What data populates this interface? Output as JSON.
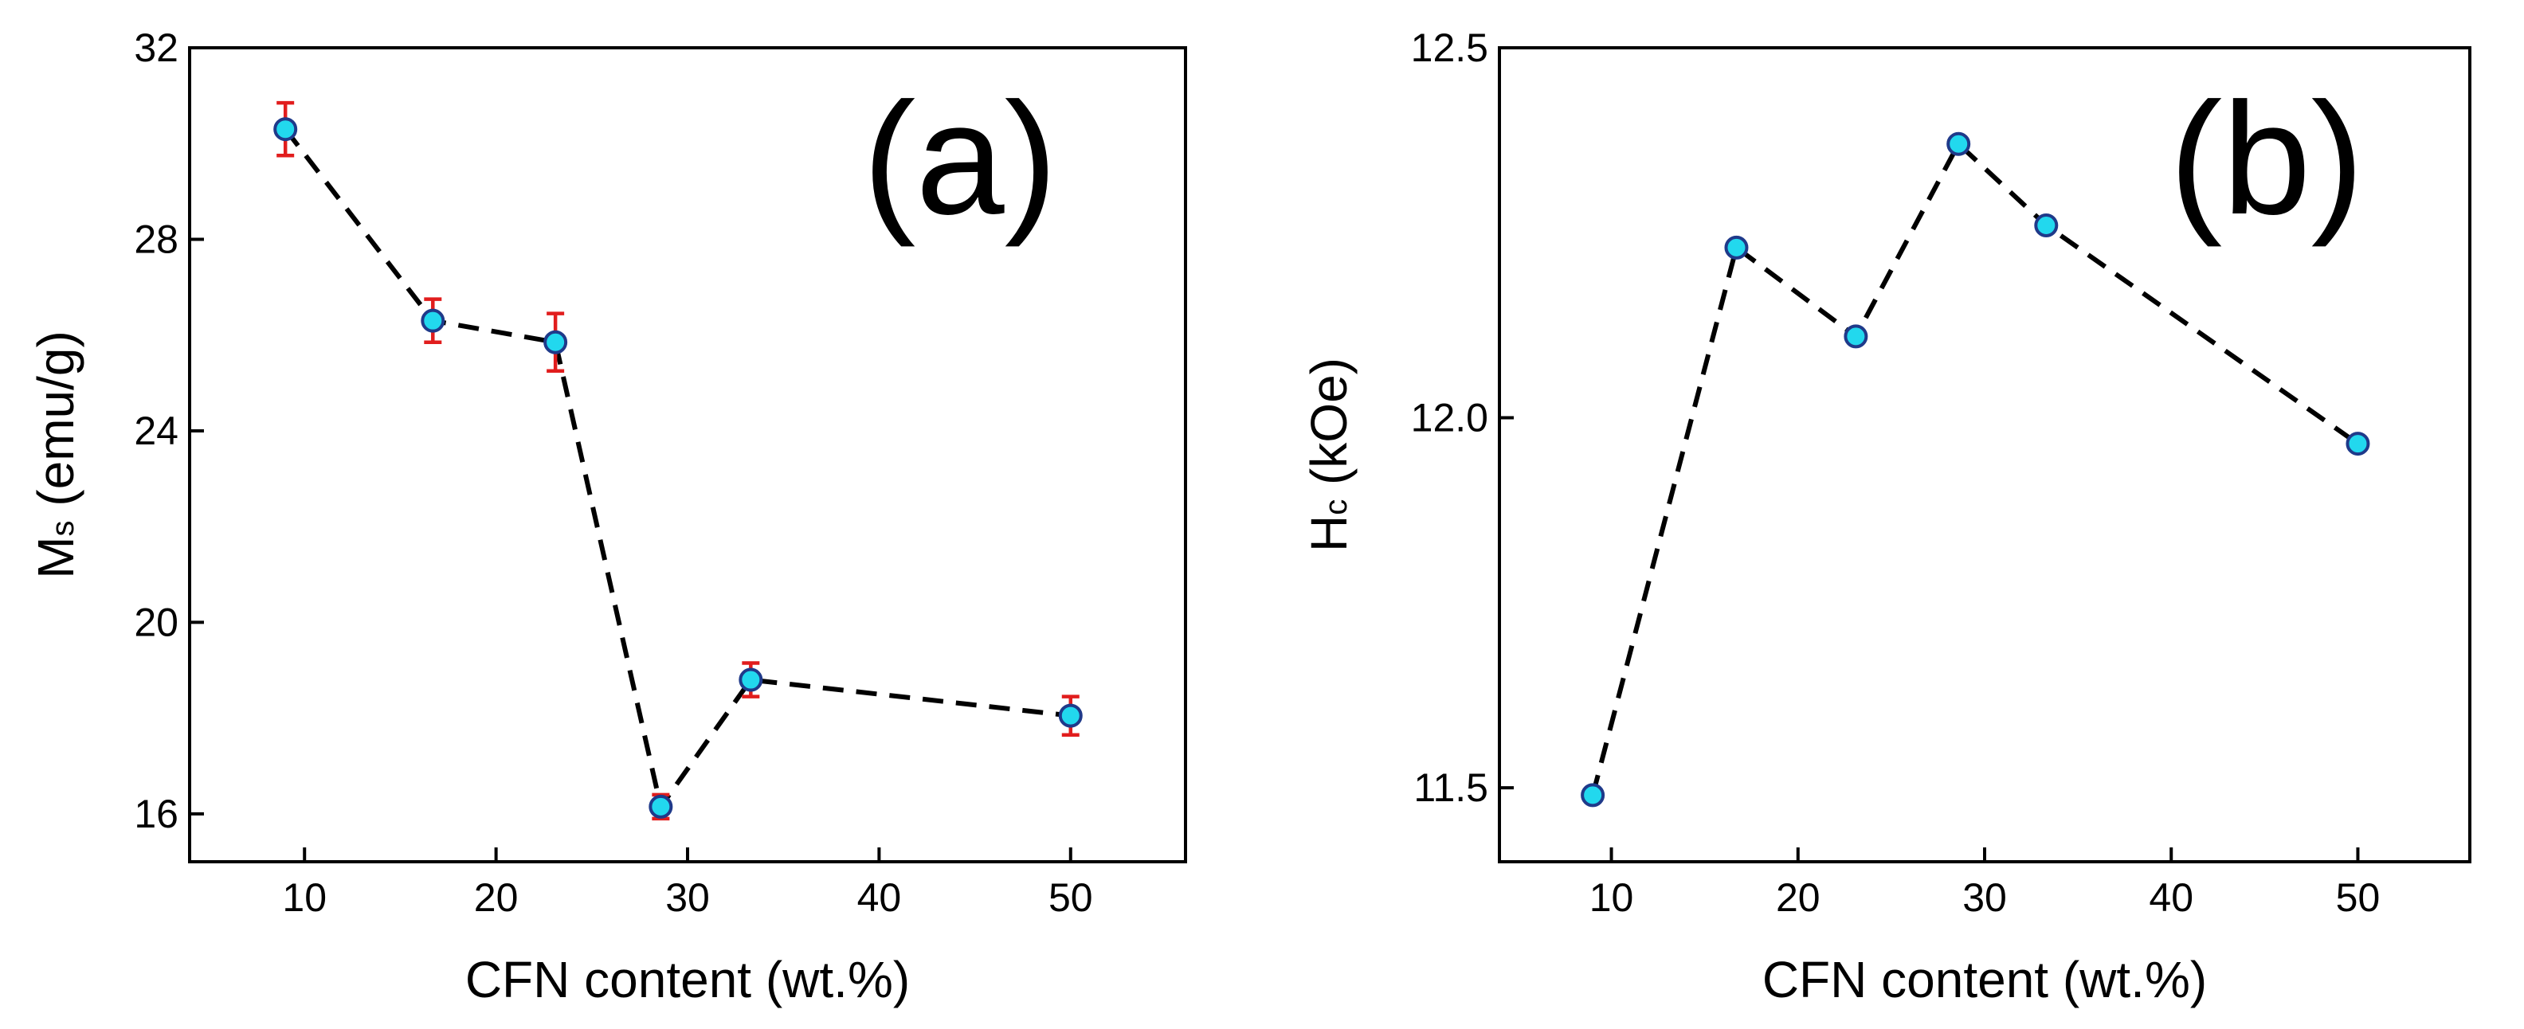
{
  "chart_data": [
    {
      "type": "scatter",
      "panel_label": "(a)",
      "x": [
        9,
        16.7,
        23.1,
        28.6,
        33.3,
        50
      ],
      "series": [
        {
          "name": "Ms",
          "values": [
            30.3,
            26.3,
            25.85,
            16.15,
            18.8,
            18.05
          ],
          "errors": [
            0.55,
            0.45,
            0.6,
            0.25,
            0.35,
            0.4
          ],
          "line_style": "dashed",
          "marker_color": "#22d8ee",
          "error_color": "#e11d1d"
        }
      ],
      "xlabel": "CFN content (wt.%)",
      "ylabel_main": "M",
      "ylabel_sub": "s",
      "ylabel_rest": " (emu/g)",
      "xlim": [
        4,
        56
      ],
      "ylim": [
        15,
        32
      ],
      "xticks": [
        10,
        20,
        30,
        40,
        50
      ],
      "yticks": [
        16,
        20,
        24,
        28,
        32
      ],
      "grid": false
    },
    {
      "type": "scatter",
      "panel_label": "(b)",
      "x": [
        9,
        16.7,
        23.1,
        28.6,
        33.3,
        50
      ],
      "series": [
        {
          "name": "Hc",
          "values": [
            11.49,
            12.23,
            12.11,
            12.37,
            12.26,
            11.965
          ],
          "line_style": "dashed",
          "marker_color": "#22d8ee"
        }
      ],
      "xlabel": "CFN content (wt.%)",
      "ylabel_main": "H",
      "ylabel_sub": "c",
      "ylabel_rest": " (kOe)",
      "xlim": [
        4,
        56
      ],
      "ylim": [
        11.4,
        12.5
      ],
      "xticks": [
        10,
        20,
        30,
        40,
        50
      ],
      "yticks": [
        11.5,
        12.0,
        12.5
      ],
      "ytick_labels": [
        "11.5",
        "12.0",
        "12.5"
      ],
      "grid": false
    }
  ]
}
